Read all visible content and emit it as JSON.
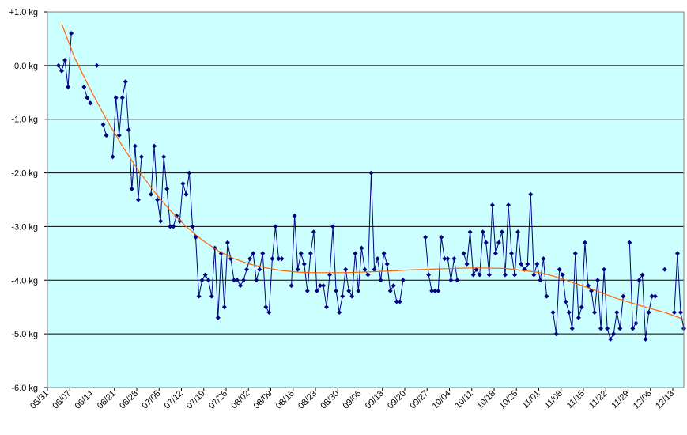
{
  "chart_data": {
    "type": "line",
    "title": "",
    "xlabel": "",
    "ylabel": "",
    "y_unit": "kg",
    "ylim": [
      -6.0,
      1.0
    ],
    "ytick_labels": [
      "+1.0 kg",
      "0.0 kg",
      "-1.0 kg",
      "-2.0 kg",
      "-3.0 kg",
      "-4.0 kg",
      "-5.0 kg",
      "-6.0 kg"
    ],
    "ytick_values": [
      1.0,
      0.0,
      -1.0,
      -2.0,
      -3.0,
      -4.0,
      -5.0,
      -6.0
    ],
    "xtick_labels": [
      "05/31",
      "06/07",
      "06/14",
      "06/21",
      "06/28",
      "07/05",
      "07/12",
      "07/19",
      "07/26",
      "08/02",
      "08/09",
      "08/16",
      "08/23",
      "08/30",
      "09/06",
      "09/13",
      "09/20",
      "09/27",
      "10/04",
      "10/11",
      "10/18",
      "10/25",
      "11/01",
      "11/08",
      "11/15",
      "11/22",
      "11/29",
      "12/06",
      "12/13"
    ],
    "x_days_span": 196,
    "grid": "horizontal",
    "plot_background": "#ccffff",
    "series": [
      {
        "name": "",
        "style": "markers-line",
        "color": "#000080",
        "points": [
          [
            0,
            0.0
          ],
          [
            1,
            -0.1
          ],
          [
            2,
            0.1
          ],
          [
            3,
            -0.4
          ],
          [
            4,
            0.6
          ],
          [
            8,
            -0.4
          ],
          [
            9,
            -0.6
          ],
          [
            10,
            -0.7
          ],
          [
            12,
            0.0
          ],
          [
            14,
            -1.1
          ],
          [
            15,
            -1.3
          ],
          [
            17,
            -1.7
          ],
          [
            18,
            -0.6
          ],
          [
            19,
            -1.3
          ],
          [
            20,
            -0.6
          ],
          [
            21,
            -0.3
          ],
          [
            22,
            -1.2
          ],
          [
            23,
            -2.3
          ],
          [
            24,
            -1.5
          ],
          [
            25,
            -2.5
          ],
          [
            26,
            -1.7
          ],
          [
            29,
            -2.4
          ],
          [
            30,
            -1.5
          ],
          [
            31,
            -2.5
          ],
          [
            32,
            -2.9
          ],
          [
            33,
            -1.7
          ],
          [
            34,
            -2.3
          ],
          [
            35,
            -3.0
          ],
          [
            36,
            -3.0
          ],
          [
            37,
            -2.8
          ],
          [
            38,
            -2.9
          ],
          [
            39,
            -2.2
          ],
          [
            40,
            -2.4
          ],
          [
            41,
            -2.0
          ],
          [
            42,
            -3.0
          ],
          [
            43,
            -3.2
          ],
          [
            44,
            -4.3
          ],
          [
            45,
            -4.0
          ],
          [
            46,
            -3.9
          ],
          [
            47,
            -4.0
          ],
          [
            48,
            -4.3
          ],
          [
            49,
            -3.4
          ],
          [
            50,
            -4.7
          ],
          [
            51,
            -3.5
          ],
          [
            52,
            -4.5
          ],
          [
            53,
            -3.3
          ],
          [
            54,
            -3.6
          ],
          [
            55,
            -4.0
          ],
          [
            56,
            -4.0
          ],
          [
            57,
            -4.1
          ],
          [
            58,
            -4.0
          ],
          [
            59,
            -3.8
          ],
          [
            60,
            -3.6
          ],
          [
            61,
            -3.5
          ],
          [
            62,
            -4.0
          ],
          [
            63,
            -3.8
          ],
          [
            64,
            -3.5
          ],
          [
            65,
            -4.5
          ],
          [
            66,
            -4.6
          ],
          [
            67,
            -3.6
          ],
          [
            68,
            -3.0
          ],
          [
            69,
            -3.6
          ],
          [
            70,
            -3.6
          ],
          [
            73,
            -4.1
          ],
          [
            74,
            -2.8
          ],
          [
            75,
            -3.8
          ],
          [
            76,
            -3.5
          ],
          [
            77,
            -3.7
          ],
          [
            78,
            -4.2
          ],
          [
            79,
            -3.5
          ],
          [
            80,
            -3.1
          ],
          [
            81,
            -4.2
          ],
          [
            82,
            -4.1
          ],
          [
            83,
            -4.1
          ],
          [
            84,
            -4.5
          ],
          [
            85,
            -3.9
          ],
          [
            86,
            -3.0
          ],
          [
            87,
            -4.2
          ],
          [
            88,
            -4.6
          ],
          [
            89,
            -4.3
          ],
          [
            90,
            -3.8
          ],
          [
            91,
            -4.2
          ],
          [
            92,
            -4.3
          ],
          [
            93,
            -3.5
          ],
          [
            94,
            -4.2
          ],
          [
            95,
            -3.4
          ],
          [
            96,
            -3.8
          ],
          [
            97,
            -3.9
          ],
          [
            98,
            -2.0
          ],
          [
            99,
            -3.8
          ],
          [
            100,
            -3.6
          ],
          [
            101,
            -4.0
          ],
          [
            102,
            -3.5
          ],
          [
            103,
            -3.7
          ],
          [
            104,
            -4.2
          ],
          [
            105,
            -4.1
          ],
          [
            106,
            -4.4
          ],
          [
            107,
            -4.4
          ],
          [
            108,
            -4.0
          ],
          [
            115,
            -3.2
          ],
          [
            116,
            -3.9
          ],
          [
            117,
            -4.2
          ],
          [
            118,
            -4.2
          ],
          [
            119,
            -4.2
          ],
          [
            120,
            -3.2
          ],
          [
            121,
            -3.6
          ],
          [
            122,
            -3.6
          ],
          [
            123,
            -4.0
          ],
          [
            124,
            -3.6
          ],
          [
            125,
            -4.0
          ],
          [
            127,
            -3.5
          ],
          [
            128,
            -3.7
          ],
          [
            129,
            -3.1
          ],
          [
            130,
            -3.9
          ],
          [
            131,
            -3.8
          ],
          [
            132,
            -3.9
          ],
          [
            133,
            -3.1
          ],
          [
            134,
            -3.3
          ],
          [
            135,
            -3.9
          ],
          [
            136,
            -2.6
          ],
          [
            137,
            -3.5
          ],
          [
            138,
            -3.3
          ],
          [
            139,
            -3.1
          ],
          [
            140,
            -3.9
          ],
          [
            141,
            -2.6
          ],
          [
            142,
            -3.5
          ],
          [
            143,
            -3.9
          ],
          [
            144,
            -3.1
          ],
          [
            145,
            -3.7
          ],
          [
            146,
            -3.8
          ],
          [
            147,
            -3.7
          ],
          [
            148,
            -2.4
          ],
          [
            149,
            -3.9
          ],
          [
            150,
            -3.7
          ],
          [
            151,
            -4.0
          ],
          [
            152,
            -3.6
          ],
          [
            153,
            -4.3
          ],
          [
            155,
            -4.6
          ],
          [
            156,
            -5.0
          ],
          [
            157,
            -3.8
          ],
          [
            158,
            -3.9
          ],
          [
            159,
            -4.4
          ],
          [
            160,
            -4.6
          ],
          [
            161,
            -4.9
          ],
          [
            162,
            -3.5
          ],
          [
            163,
            -4.7
          ],
          [
            164,
            -4.5
          ],
          [
            165,
            -3.3
          ],
          [
            166,
            -4.1
          ],
          [
            167,
            -4.2
          ],
          [
            168,
            -4.6
          ],
          [
            169,
            -4.0
          ],
          [
            170,
            -4.9
          ],
          [
            171,
            -3.8
          ],
          [
            172,
            -4.9
          ],
          [
            173,
            -5.1
          ],
          [
            174,
            -5.0
          ],
          [
            175,
            -4.6
          ],
          [
            176,
            -4.9
          ],
          [
            177,
            -4.3
          ],
          [
            179,
            -3.3
          ],
          [
            180,
            -4.9
          ],
          [
            181,
            -4.8
          ],
          [
            182,
            -4.0
          ],
          [
            183,
            -3.9
          ],
          [
            184,
            -5.1
          ],
          [
            185,
            -4.6
          ],
          [
            186,
            -4.3
          ],
          [
            187,
            -4.3
          ],
          [
            190,
            -3.8
          ],
          [
            193,
            -4.6
          ],
          [
            194,
            -3.5
          ],
          [
            195,
            -4.6
          ],
          [
            196,
            -4.9
          ]
        ]
      },
      {
        "name": "",
        "style": "trend-line",
        "color": "#ff6600",
        "points": [
          [
            1,
            0.78
          ],
          [
            5,
            0.15
          ],
          [
            10,
            -0.45
          ],
          [
            15,
            -1.0
          ],
          [
            20,
            -1.5
          ],
          [
            25,
            -1.95
          ],
          [
            30,
            -2.35
          ],
          [
            35,
            -2.7
          ],
          [
            40,
            -3.0
          ],
          [
            45,
            -3.25
          ],
          [
            50,
            -3.45
          ],
          [
            55,
            -3.6
          ],
          [
            60,
            -3.7
          ],
          [
            65,
            -3.77
          ],
          [
            70,
            -3.82
          ],
          [
            75,
            -3.85
          ],
          [
            80,
            -3.86
          ],
          [
            90,
            -3.86
          ],
          [
            100,
            -3.84
          ],
          [
            110,
            -3.81
          ],
          [
            120,
            -3.79
          ],
          [
            130,
            -3.77
          ],
          [
            140,
            -3.78
          ],
          [
            150,
            -3.85
          ],
          [
            155,
            -3.92
          ],
          [
            160,
            -4.02
          ],
          [
            165,
            -4.12
          ],
          [
            170,
            -4.23
          ],
          [
            175,
            -4.34
          ],
          [
            180,
            -4.43
          ],
          [
            185,
            -4.52
          ],
          [
            190,
            -4.6
          ],
          [
            196,
            -4.73
          ]
        ]
      }
    ]
  }
}
